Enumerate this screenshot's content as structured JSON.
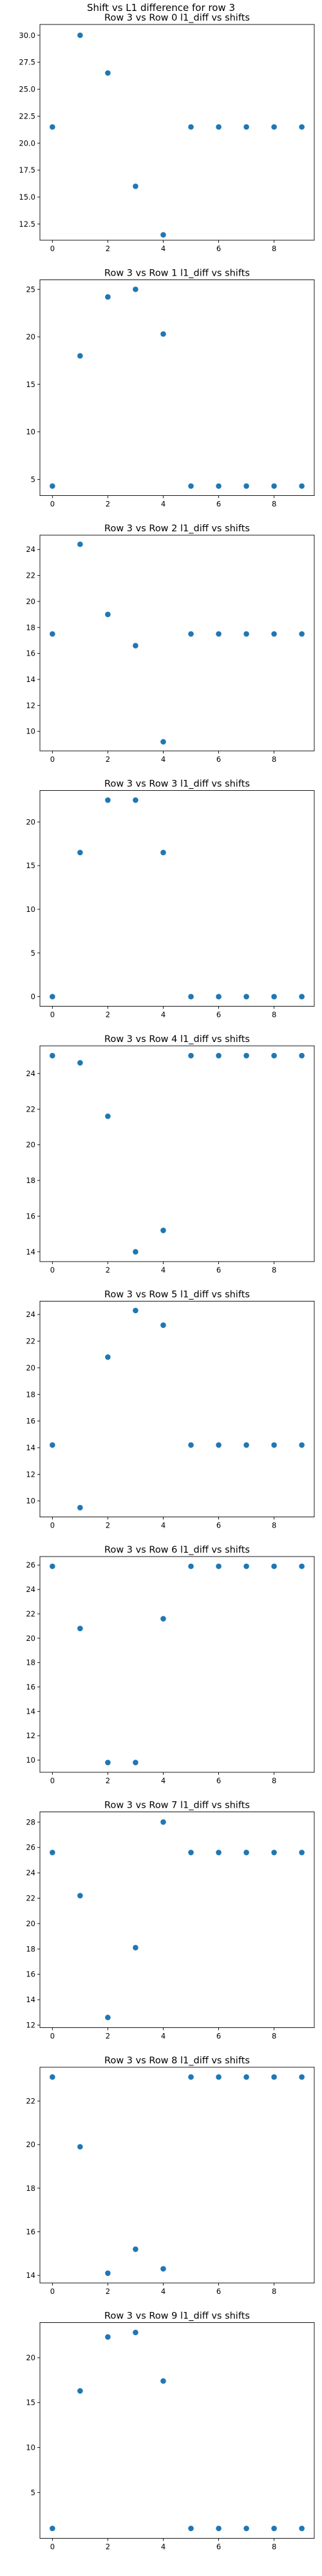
{
  "figure": {
    "suptitle": "Shift vs L1 difference for row 3",
    "marker_color": "#1f77b4"
  },
  "chart_data": [
    {
      "type": "scatter",
      "title": "Row 3 vs Row 0 l1_diff vs shifts",
      "x": [
        0,
        1,
        2,
        3,
        4,
        5,
        6,
        7,
        8,
        9
      ],
      "y": [
        21.5,
        30.0,
        26.5,
        16.0,
        11.5,
        21.5,
        21.5,
        21.5,
        21.5,
        21.5
      ],
      "xlim": [
        -0.45,
        9.45
      ],
      "xticks": [
        0,
        2,
        4,
        6,
        8
      ],
      "ylim": [
        11.0,
        31.0
      ],
      "yticks": [
        12.5,
        15.0,
        17.5,
        20.0,
        22.5,
        25.0,
        27.5,
        30.0
      ],
      "ytick_labels": [
        "12.5",
        "15.0",
        "17.5",
        "20.0",
        "22.5",
        "25.0",
        "27.5",
        "30.0"
      ],
      "grid": false
    },
    {
      "type": "scatter",
      "title": "Row 3 vs Row 1 l1_diff vs shifts",
      "x": [
        0,
        1,
        2,
        3,
        4,
        5,
        6,
        7,
        8,
        9
      ],
      "y": [
        4.3,
        18.0,
        24.2,
        25.0,
        20.3,
        4.3,
        4.3,
        4.3,
        4.3,
        4.3
      ],
      "xlim": [
        -0.45,
        9.45
      ],
      "xticks": [
        0,
        2,
        4,
        6,
        8
      ],
      "ylim": [
        3.3,
        26.0
      ],
      "yticks": [
        5,
        10,
        15,
        20,
        25
      ],
      "ytick_labels": [
        "5",
        "10",
        "15",
        "20",
        "25"
      ],
      "grid": false
    },
    {
      "type": "scatter",
      "title": "Row 3 vs Row 2 l1_diff vs shifts",
      "x": [
        0,
        1,
        2,
        3,
        4,
        5,
        6,
        7,
        8,
        9
      ],
      "y": [
        17.5,
        24.4,
        19.0,
        16.6,
        9.2,
        17.5,
        17.5,
        17.5,
        17.5,
        17.5
      ],
      "xlim": [
        -0.45,
        9.45
      ],
      "xticks": [
        0,
        2,
        4,
        6,
        8
      ],
      "ylim": [
        8.5,
        25.1
      ],
      "yticks": [
        10,
        12,
        14,
        16,
        18,
        20,
        22,
        24
      ],
      "ytick_labels": [
        "10",
        "12",
        "14",
        "16",
        "18",
        "20",
        "22",
        "24"
      ],
      "grid": false
    },
    {
      "type": "scatter",
      "title": "Row 3 vs Row 3 l1_diff vs shifts",
      "x": [
        0,
        1,
        2,
        3,
        4,
        5,
        6,
        7,
        8,
        9
      ],
      "y": [
        0.0,
        16.5,
        22.5,
        22.5,
        16.5,
        0.0,
        0.0,
        0.0,
        0.0,
        0.0
      ],
      "xlim": [
        -0.45,
        9.45
      ],
      "xticks": [
        0,
        2,
        4,
        6,
        8
      ],
      "ylim": [
        -1.1,
        23.6
      ],
      "yticks": [
        0,
        5,
        10,
        15,
        20
      ],
      "ytick_labels": [
        "0",
        "5",
        "10",
        "15",
        "20"
      ],
      "grid": false
    },
    {
      "type": "scatter",
      "title": "Row 3 vs Row 4 l1_diff vs shifts",
      "x": [
        0,
        1,
        2,
        3,
        4,
        5,
        6,
        7,
        8,
        9
      ],
      "y": [
        25.0,
        24.6,
        21.6,
        14.0,
        15.2,
        25.0,
        25.0,
        25.0,
        25.0,
        25.0
      ],
      "xlim": [
        -0.45,
        9.45
      ],
      "xticks": [
        0,
        2,
        4,
        6,
        8
      ],
      "ylim": [
        13.45,
        25.55
      ],
      "yticks": [
        14,
        16,
        18,
        20,
        22,
        24
      ],
      "ytick_labels": [
        "14",
        "16",
        "18",
        "20",
        "22",
        "24"
      ],
      "grid": false
    },
    {
      "type": "scatter",
      "title": "Row 3 vs Row 5 l1_diff vs shifts",
      "x": [
        0,
        1,
        2,
        3,
        4,
        5,
        6,
        7,
        8,
        9
      ],
      "y": [
        14.2,
        9.5,
        20.8,
        24.3,
        23.2,
        14.2,
        14.2,
        14.2,
        14.2,
        14.2
      ],
      "xlim": [
        -0.45,
        9.45
      ],
      "xticks": [
        0,
        2,
        4,
        6,
        8
      ],
      "ylim": [
        8.8,
        25.0
      ],
      "yticks": [
        10,
        12,
        14,
        16,
        18,
        20,
        22,
        24
      ],
      "ytick_labels": [
        "10",
        "12",
        "14",
        "16",
        "18",
        "20",
        "22",
        "24"
      ],
      "grid": false
    },
    {
      "type": "scatter",
      "title": "Row 3 vs Row 6 l1_diff vs shifts",
      "x": [
        0,
        1,
        2,
        3,
        4,
        5,
        6,
        7,
        8,
        9
      ],
      "y": [
        25.9,
        20.8,
        9.8,
        9.8,
        21.6,
        25.9,
        25.9,
        25.9,
        25.9,
        25.9
      ],
      "xlim": [
        -0.45,
        9.45
      ],
      "xticks": [
        0,
        2,
        4,
        6,
        8
      ],
      "ylim": [
        9.0,
        26.7
      ],
      "yticks": [
        10,
        12,
        14,
        16,
        18,
        20,
        22,
        24,
        26
      ],
      "ytick_labels": [
        "10",
        "12",
        "14",
        "16",
        "18",
        "20",
        "22",
        "24",
        "26"
      ],
      "grid": false
    },
    {
      "type": "scatter",
      "title": "Row 3 vs Row 7 l1_diff vs shifts",
      "x": [
        0,
        1,
        2,
        3,
        4,
        5,
        6,
        7,
        8,
        9
      ],
      "y": [
        25.6,
        22.2,
        12.6,
        18.1,
        28.0,
        25.6,
        25.6,
        25.6,
        25.6,
        25.6
      ],
      "xlim": [
        -0.45,
        9.45
      ],
      "xticks": [
        0,
        2,
        4,
        6,
        8
      ],
      "ylim": [
        11.8,
        28.8
      ],
      "yticks": [
        12,
        14,
        16,
        18,
        20,
        22,
        24,
        26,
        28
      ],
      "ytick_labels": [
        "12",
        "14",
        "16",
        "18",
        "20",
        "22",
        "24",
        "26",
        "28"
      ],
      "grid": false
    },
    {
      "type": "scatter",
      "title": "Row 3 vs Row 8 l1_diff vs shifts",
      "x": [
        0,
        1,
        2,
        3,
        4,
        5,
        6,
        7,
        8,
        9
      ],
      "y": [
        23.1,
        19.9,
        14.1,
        15.2,
        14.3,
        23.1,
        23.1,
        23.1,
        23.1,
        23.1
      ],
      "xlim": [
        -0.45,
        9.45
      ],
      "xticks": [
        0,
        2,
        4,
        6,
        8
      ],
      "ylim": [
        13.65,
        23.55
      ],
      "yticks": [
        14,
        16,
        18,
        20,
        22
      ],
      "ytick_labels": [
        "14",
        "16",
        "18",
        "20",
        "22"
      ],
      "grid": false
    },
    {
      "type": "scatter",
      "title": "Row 3 vs Row 9 l1_diff vs shifts",
      "x": [
        0,
        1,
        2,
        3,
        4,
        5,
        6,
        7,
        8,
        9
      ],
      "y": [
        1.0,
        16.3,
        22.3,
        22.8,
        17.4,
        1.0,
        1.0,
        1.0,
        1.0,
        1.0
      ],
      "xlim": [
        -0.45,
        9.45
      ],
      "xticks": [
        0,
        2,
        4,
        6,
        8
      ],
      "ylim": [
        -0.1,
        23.9
      ],
      "yticks": [
        5,
        10,
        15,
        20
      ],
      "ytick_labels": [
        "5",
        "10",
        "15",
        "20"
      ],
      "grid": false
    }
  ]
}
